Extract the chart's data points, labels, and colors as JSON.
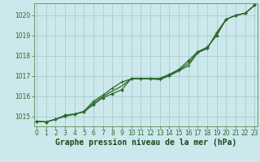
{
  "title": "Graphe pression niveau de la mer (hPa)",
  "bg_color": "#cce8ec",
  "grid_color": "#aacccc",
  "line_color": "#2d6a2d",
  "marker_color": "#2d6a2d",
  "hours": [
    0,
    1,
    2,
    3,
    4,
    5,
    6,
    7,
    8,
    9,
    10,
    11,
    12,
    13,
    14,
    15,
    16,
    17,
    18,
    19,
    20,
    21,
    22,
    23
  ],
  "line1": [
    1014.75,
    1014.72,
    1014.85,
    1015.0,
    1015.1,
    1015.25,
    1015.75,
    1016.05,
    1016.4,
    1016.7,
    1016.85,
    1016.85,
    1016.85,
    1016.82,
    1017.0,
    1017.25,
    1017.5,
    1018.15,
    1018.35,
    1019.15,
    1019.8,
    1020.0,
    1020.1,
    1020.5
  ],
  "line2": [
    1014.75,
    1014.72,
    1014.85,
    1015.05,
    1015.12,
    1015.22,
    1015.58,
    1015.92,
    1016.12,
    1016.32,
    1016.88,
    1016.88,
    1016.88,
    1016.88,
    1017.08,
    1017.32,
    1017.75,
    1018.2,
    1018.42,
    1019.0,
    1019.8,
    1020.0,
    1020.1,
    1020.5
  ],
  "line3": [
    1014.75,
    1014.72,
    1014.85,
    1015.02,
    1015.1,
    1015.22,
    1015.65,
    1015.98,
    1016.25,
    1016.5,
    1016.87,
    1016.87,
    1016.87,
    1016.85,
    1017.03,
    1017.28,
    1017.62,
    1018.17,
    1018.38,
    1019.07,
    1019.8,
    1020.0,
    1020.1,
    1020.5
  ],
  "ylim_min": 1014.5,
  "ylim_max": 1020.6,
  "yticks": [
    1015,
    1016,
    1017,
    1018,
    1019,
    1020
  ],
  "xticks": [
    0,
    1,
    2,
    3,
    4,
    5,
    6,
    7,
    8,
    9,
    10,
    11,
    12,
    13,
    14,
    15,
    16,
    17,
    18,
    19,
    20,
    21,
    22,
    23
  ],
  "title_fontsize": 7,
  "tick_fontsize": 5.5,
  "title_color": "#1a4a1a",
  "tick_color": "#2d6a2d",
  "spine_color": "#6a9a6a"
}
